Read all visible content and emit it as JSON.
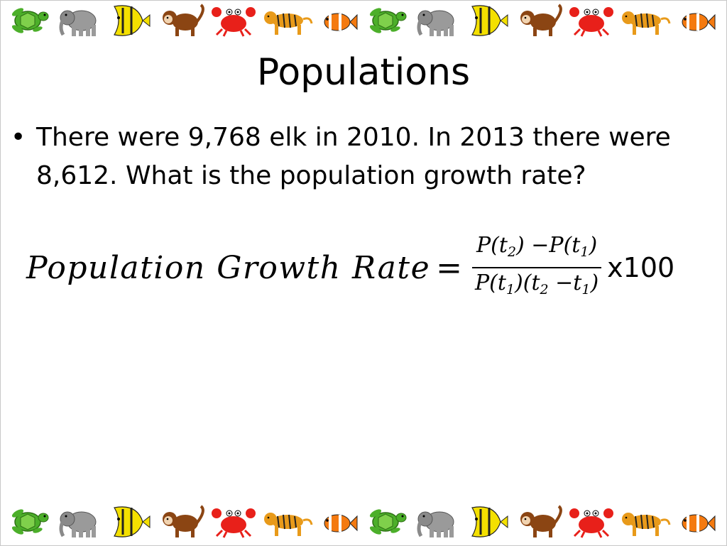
{
  "slide": {
    "title": "Populations",
    "bullets": [
      {
        "line1": "There were 9,768 elk in 2010. In 2013 there were",
        "line2": "8,612. What is the population growth rate?"
      }
    ],
    "formula": {
      "lhs": "Population Growth Rate",
      "equals": "=",
      "numerator": {
        "p1": "P(t",
        "sub1": "2",
        "p2": ") −P(t",
        "sub2": "1",
        "p3": ")"
      },
      "denominator": {
        "p1": "P(t",
        "sub1": "1",
        "p2": ")(t",
        "sub2": "2",
        "p3": " −t",
        "sub3": "1",
        "p4": ")"
      },
      "multiplier": "x100"
    }
  },
  "decoration": {
    "border_animals": [
      "turtle",
      "elephant",
      "fish",
      "monkey",
      "crab",
      "tiger",
      "clownfish",
      "turtle",
      "elephant",
      "fish",
      "monkey",
      "crab",
      "tiger",
      "clownfish"
    ],
    "colors": {
      "turtle": "#4caf2a",
      "elephant": "#9a9a9a",
      "fish": "#f4e000",
      "monkey": "#8b4513",
      "crab": "#e8201a",
      "tiger": "#e89a1a",
      "clownfish": "#f47a10"
    }
  }
}
